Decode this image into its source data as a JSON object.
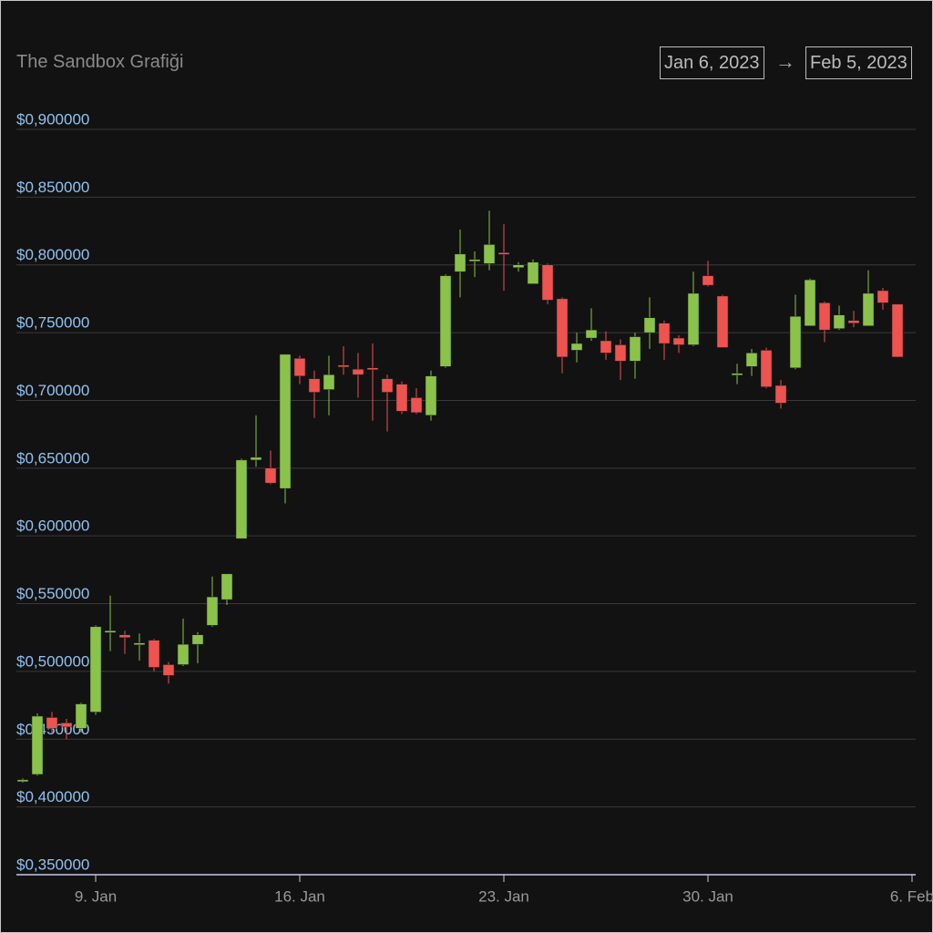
{
  "chart_data": {
    "type": "candlestick",
    "title": "The Sandbox Grafiği",
    "date_range": {
      "start": "Jan 6, 2023",
      "separator": "→",
      "end": "Feb 5, 2023"
    },
    "categories": [
      null,
      null,
      null,
      null,
      null,
      "9. Jan",
      null,
      null,
      null,
      null,
      null,
      null,
      null,
      null,
      null,
      null,
      null,
      null,
      null,
      "16. Jan",
      null,
      null,
      null,
      null,
      null,
      null,
      null,
      null,
      null,
      null,
      null,
      null,
      null,
      "23. Jan",
      null,
      null,
      null,
      null,
      null,
      null,
      null,
      null,
      null,
      null,
      null,
      null,
      null,
      "30. Jan",
      null,
      null,
      null,
      null,
      null,
      null,
      null,
      null,
      null,
      null,
      null,
      null,
      null,
      "6. Feb"
    ],
    "open": [
      0.419,
      0.424,
      0.466,
      0.462,
      0.458,
      0.47,
      0.529,
      0.527,
      0.52,
      0.523,
      0.505,
      0.505,
      0.52,
      0.534,
      0.553,
      0.598,
      0.656,
      0.65,
      0.635,
      0.731,
      0.716,
      0.708,
      0.726,
      0.723,
      0.724,
      0.716,
      0.712,
      0.702,
      0.689,
      0.725,
      0.795,
      0.803,
      0.801,
      0.809,
      0.798,
      0.786,
      0.8,
      0.775,
      0.737,
      0.746,
      0.744,
      0.741,
      0.729,
      0.75,
      0.757,
      0.746,
      0.741,
      0.792,
      0.777,
      0.719,
      0.725,
      0.737,
      0.711,
      0.724,
      0.755,
      0.772,
      0.753,
      0.759,
      0.755,
      0.781,
      0.771,
      null
    ],
    "high": [
      0.421,
      0.469,
      0.47,
      0.465,
      0.477,
      0.534,
      0.556,
      0.53,
      0.528,
      0.524,
      0.507,
      0.539,
      0.529,
      0.57,
      0.572,
      0.657,
      0.689,
      0.663,
      0.734,
      0.733,
      0.722,
      0.733,
      0.74,
      0.735,
      0.742,
      0.719,
      0.714,
      0.709,
      0.722,
      0.793,
      0.826,
      0.81,
      0.84,
      0.83,
      0.802,
      0.804,
      0.801,
      0.776,
      0.75,
      0.768,
      0.751,
      0.745,
      0.75,
      0.776,
      0.759,
      0.748,
      0.795,
      0.803,
      0.778,
      0.727,
      0.738,
      0.739,
      0.715,
      0.778,
      0.79,
      0.773,
      0.77,
      0.766,
      0.796,
      0.783,
      0.771,
      null
    ],
    "low": [
      0.418,
      0.423,
      0.455,
      0.45,
      0.455,
      0.468,
      0.515,
      0.513,
      0.508,
      0.5,
      0.491,
      0.504,
      0.506,
      0.533,
      0.549,
      0.598,
      0.651,
      0.638,
      0.624,
      0.712,
      0.687,
      0.689,
      0.719,
      0.702,
      0.685,
      0.677,
      0.69,
      0.69,
      0.685,
      0.724,
      0.776,
      0.791,
      0.796,
      0.781,
      0.795,
      0.786,
      0.771,
      0.72,
      0.728,
      0.744,
      0.73,
      0.715,
      0.716,
      0.738,
      0.73,
      0.735,
      0.74,
      0.784,
      0.739,
      0.712,
      0.718,
      0.709,
      0.694,
      0.723,
      0.755,
      0.743,
      0.752,
      0.754,
      0.755,
      0.767,
      0.732,
      null
    ],
    "close": [
      0.42,
      0.467,
      0.458,
      0.459,
      0.476,
      0.533,
      0.53,
      0.525,
      0.521,
      0.503,
      0.497,
      0.52,
      0.527,
      0.555,
      0.572,
      0.656,
      0.658,
      0.639,
      0.734,
      0.718,
      0.706,
      0.719,
      0.725,
      0.719,
      0.723,
      0.706,
      0.692,
      0.691,
      0.718,
      0.792,
      0.808,
      0.804,
      0.815,
      0.808,
      0.8,
      0.802,
      0.774,
      0.732,
      0.742,
      0.752,
      0.735,
      0.729,
      0.747,
      0.761,
      0.742,
      0.741,
      0.779,
      0.785,
      0.739,
      0.72,
      0.735,
      0.71,
      0.698,
      0.762,
      0.789,
      0.752,
      0.763,
      0.757,
      0.779,
      0.772,
      0.732,
      null
    ],
    "up_color": "#8bc34a",
    "down_color": "#ef5350",
    "ylim": [
      0.35,
      0.9
    ],
    "yticks": [
      {
        "value": 0.35,
        "label": "$0,350000"
      },
      {
        "value": 0.4,
        "label": "$0,400000"
      },
      {
        "value": 0.45,
        "label": "$0,450000"
      },
      {
        "value": 0.5,
        "label": "$0,500000"
      },
      {
        "value": 0.55,
        "label": "$0,550000"
      },
      {
        "value": 0.6,
        "label": "$0,600000"
      },
      {
        "value": 0.65,
        "label": "$0,650000"
      },
      {
        "value": 0.7,
        "label": "$0,700000"
      },
      {
        "value": 0.75,
        "label": "$0,750000"
      },
      {
        "value": 0.8,
        "label": "$0,800000"
      },
      {
        "value": 0.85,
        "label": "$0,850000"
      },
      {
        "value": 0.9,
        "label": "$0,900000"
      }
    ],
    "grid": true
  }
}
